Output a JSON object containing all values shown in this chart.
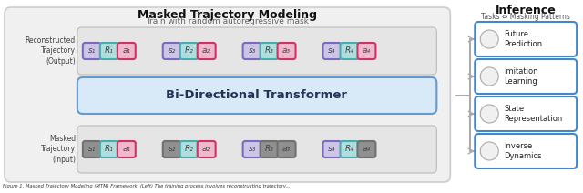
{
  "title": "Masked Trajectory Modeling",
  "subtitle": "Train with random autoregressive mask",
  "inference_title": "Inference",
  "inference_subtitle": "Tasks ⇔ Masking Patterns",
  "left_label_top": "Reconstructed\nTrajectory\n(Output)",
  "left_label_bottom": "Masked\nTrajectory\n(Input)",
  "transformer_label": "Bi-Directional Transformer",
  "inference_items": [
    "Future\nPrediction",
    "Imitation\nLearning",
    "State\nRepresentation",
    "Inverse\nDynamics"
  ],
  "token_groups": [
    [
      "s₁",
      "R₁",
      "a₁"
    ],
    [
      "s₂",
      "R₂",
      "a₂"
    ],
    [
      "s₃",
      "R₃",
      "a₃"
    ],
    [
      "s₄",
      "R₄",
      "a₄"
    ]
  ],
  "s_fill": "#cdc5e8",
  "s_border": "#7b6bbf",
  "R_fill": "#b0dede",
  "R_border": "#4aadad",
  "a_fill": "#f0b8cc",
  "a_border": "#cc3366",
  "gray_fill": "#909090",
  "gray_border": "#707070",
  "token_text_color": "#444444",
  "outer_bg": "#f0f0f0",
  "outer_border": "#cccccc",
  "inner_row_bg": "#e5e5e5",
  "inner_row_border": "#bbbbbb",
  "transformer_bg": "#d8eaf8",
  "transformer_border": "#6699cc",
  "inference_box_bg": "#ffffff",
  "inference_box_border": "#4488cc",
  "bg_color": "#ffffff",
  "brace_color": "#aaaaaa",
  "caption": "Figure 1. Masked Trajectory Modeling (MTM) Framework. (Left) The training process involves reconstructing trajectory...",
  "masked_gray": [
    [
      true,
      false,
      false
    ],
    [
      true,
      false,
      false
    ],
    [
      false,
      true,
      true
    ],
    [
      false,
      false,
      true
    ]
  ],
  "masked_visible_colored": [
    [
      false,
      false,
      false
    ],
    [
      false,
      false,
      true
    ],
    [
      true,
      false,
      false
    ],
    [
      false,
      false,
      false
    ]
  ]
}
